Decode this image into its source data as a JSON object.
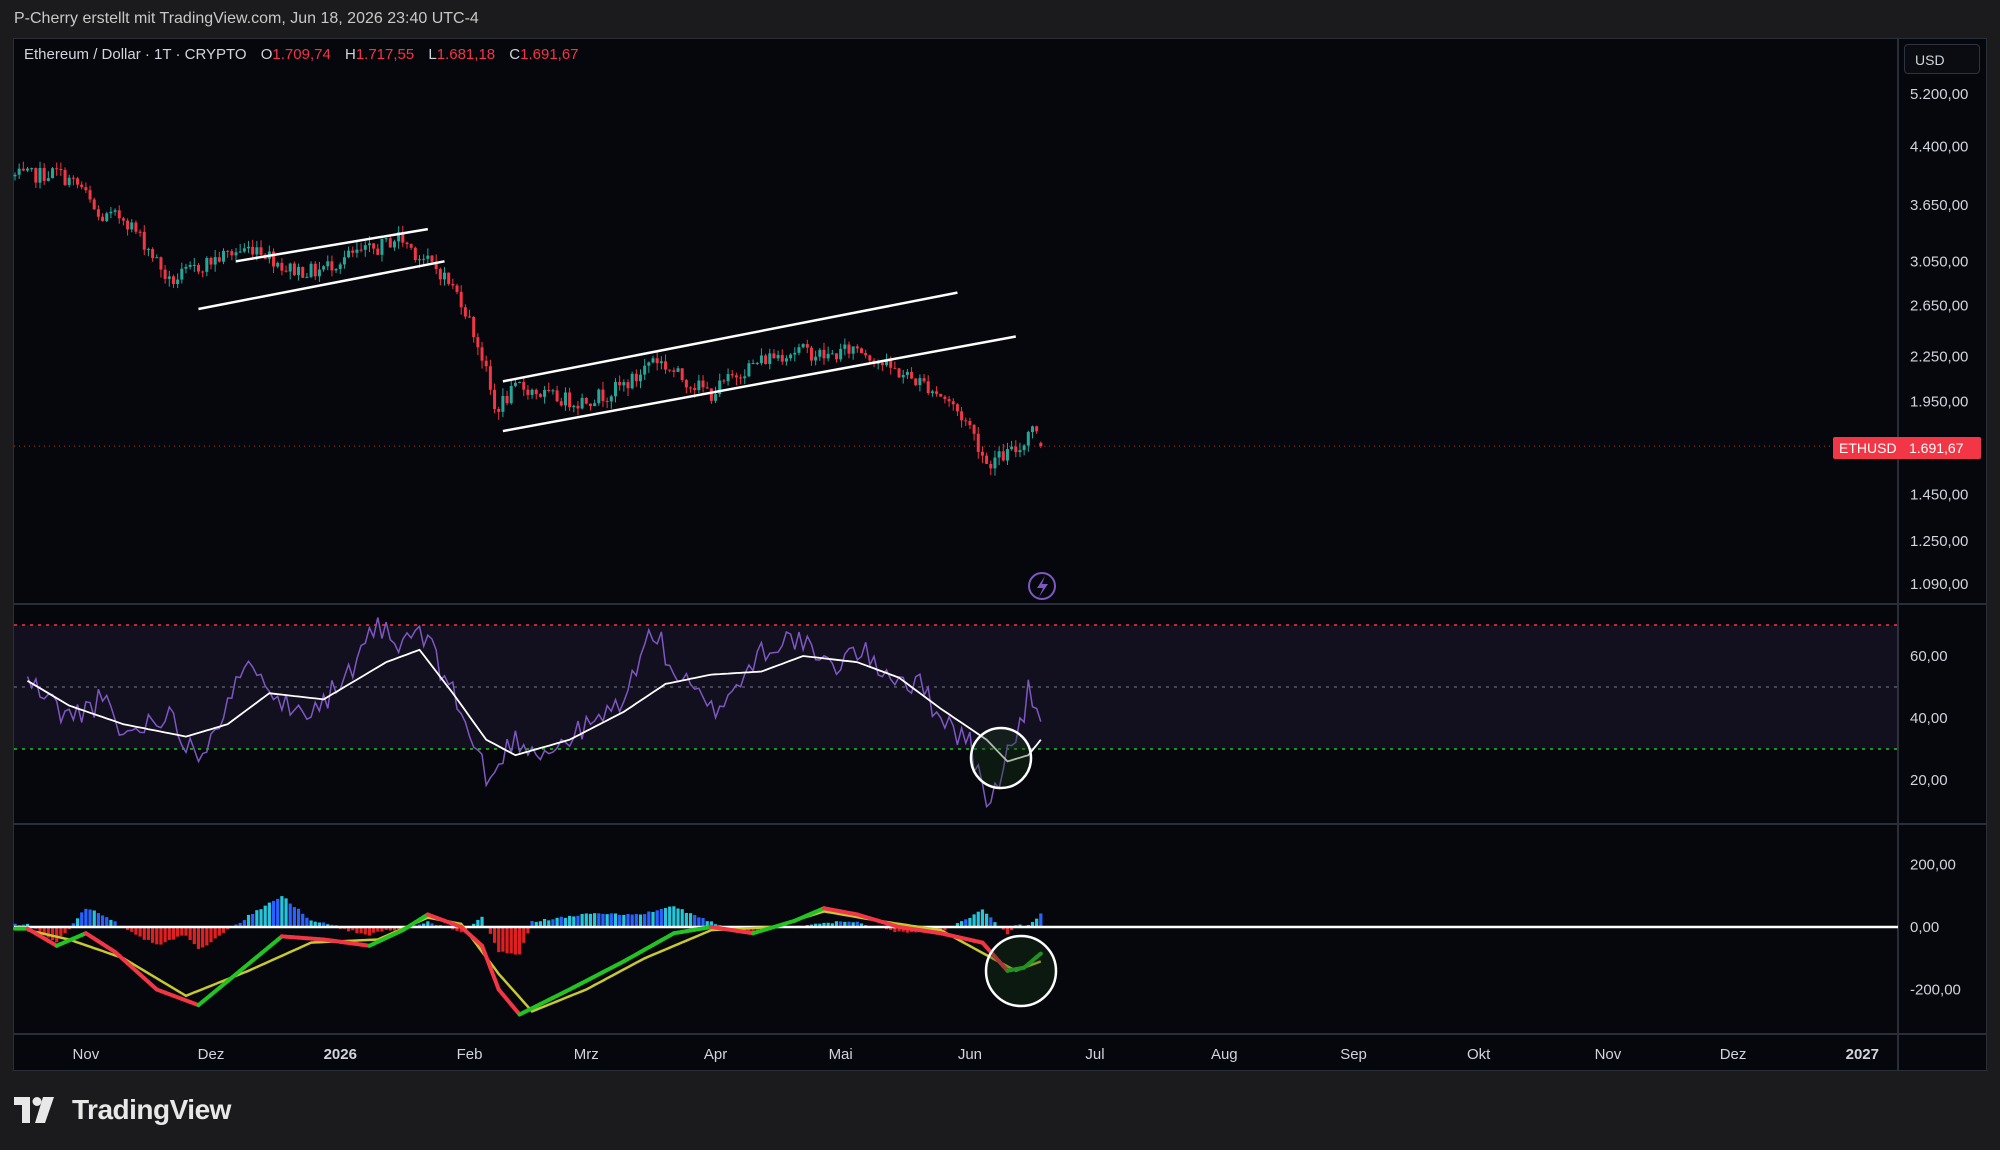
{
  "header": {
    "attribution": "P-Cherry erstellt mit TradingView.com, Jun 18, 2026 23:40 UTC-4"
  },
  "ohlc": {
    "symbol": "Ethereum / Dollar · 1T · CRYPTO",
    "open_label": "O",
    "open": "1.709,74",
    "high_label": "H",
    "high": "1.717,55",
    "low_label": "L",
    "low": "1.681,18",
    "close_label": "C",
    "close": "1.691,67"
  },
  "currency": "USD",
  "last_price": {
    "symbol": "ETHUSD",
    "value": "1.691,67"
  },
  "footer": {
    "brand": "TradingView"
  },
  "colors": {
    "background": "#06070c",
    "up": "#26a69a",
    "down": "#f23645",
    "rsi_line": "#7e57c2",
    "rsi_ma": "#ffffff",
    "macd_fast": "#f23645",
    "macd_up": "#22c322",
    "signal": "#c8c832",
    "hist_pos": "#26c6da",
    "hist_neg": "#e02020"
  },
  "chart_data": [
    {
      "type": "candlestick",
      "pane": "price",
      "scale": "log",
      "x_ticks": [
        "Nov",
        "Dez",
        "2026",
        "Feb",
        "Mrz",
        "Apr",
        "Mai",
        "Jun",
        "Jul",
        "Aug",
        "Sep",
        "Okt",
        "Nov",
        "Dez",
        "2027"
      ],
      "y_ticks": [
        "5.200,00",
        "4.400,00",
        "3.650,00",
        "3.050,00",
        "2.650,00",
        "2.250,00",
        "1.950,00",
        "1.450,00",
        "1.250,00",
        "1.090,00"
      ],
      "ylim": [
        1050,
        5500
      ],
      "path": [
        [
          "2025-10-18",
          4000
        ],
        [
          "2025-10-25",
          4050
        ],
        [
          "2025-10-31",
          3850
        ],
        [
          "2025-11-04",
          3500
        ],
        [
          "2025-11-10",
          3520
        ],
        [
          "2025-11-16",
          3180
        ],
        [
          "2025-11-21",
          2850
        ],
        [
          "2025-11-28",
          3000
        ],
        [
          "2025-12-05",
          3120
        ],
        [
          "2025-12-12",
          3200
        ],
        [
          "2025-12-19",
          2980
        ],
        [
          "2025-12-26",
          2950
        ],
        [
          "2026-01-03",
          3100
        ],
        [
          "2026-01-10",
          3180
        ],
        [
          "2026-01-15",
          3300
        ],
        [
          "2026-01-20",
          3100
        ],
        [
          "2026-01-25",
          2950
        ],
        [
          "2026-01-30",
          2700
        ],
        [
          "2026-02-04",
          2250
        ],
        [
          "2026-02-07",
          1900
        ],
        [
          "2026-02-13",
          2050
        ],
        [
          "2026-02-20",
          1980
        ],
        [
          "2026-02-27",
          1950
        ],
        [
          "2026-03-06",
          2000
        ],
        [
          "2026-03-13",
          2100
        ],
        [
          "2026-03-17",
          2250
        ],
        [
          "2026-03-24",
          2100
        ],
        [
          "2026-03-31",
          2000
        ],
        [
          "2026-04-07",
          2150
        ],
        [
          "2026-04-14",
          2250
        ],
        [
          "2026-04-21",
          2300
        ],
        [
          "2026-04-28",
          2250
        ],
        [
          "2026-05-05",
          2320
        ],
        [
          "2026-05-12",
          2180
        ],
        [
          "2026-05-18",
          2100
        ],
        [
          "2026-05-22",
          2050
        ],
        [
          "2026-05-27",
          1950
        ],
        [
          "2026-06-01",
          1800
        ],
        [
          "2026-06-05",
          1600
        ],
        [
          "2026-06-09",
          1640
        ],
        [
          "2026-06-13",
          1680
        ],
        [
          "2026-06-16",
          1820
        ],
        [
          "2026-06-18",
          1692
        ]
      ],
      "lines": [
        {
          "name": "channel-1-lower",
          "from": [
            "2025-11-28",
            2620
          ],
          "to": [
            "2026-01-26",
            3050
          ]
        },
        {
          "name": "channel-1-upper",
          "from": [
            "2025-12-07",
            3050
          ],
          "to": [
            "2026-01-22",
            3380
          ]
        },
        {
          "name": "channel-2-lower",
          "from": [
            "2026-02-09",
            1775
          ],
          "to": [
            "2026-06-12",
            2400
          ]
        },
        {
          "name": "channel-2-upper",
          "from": [
            "2026-02-09",
            2080
          ],
          "to": [
            "2026-05-29",
            2760
          ]
        }
      ],
      "last_value": 1691.67
    },
    {
      "type": "line",
      "pane": "rsi",
      "y_ticks": [
        "60,00",
        "40,00",
        "20,00"
      ],
      "ylim": [
        7,
        77
      ],
      "levels": [
        {
          "value": 70,
          "color": "#f23645"
        },
        {
          "value": 50,
          "color": "#555a66"
        },
        {
          "value": 30,
          "color": "#22c322"
        }
      ],
      "series": [
        {
          "values": [
            [
              "2025-10-18",
              52
            ],
            [
              "2025-10-28",
              40
            ],
            [
              "2025-11-05",
              46
            ],
            [
              "2025-11-10",
              34
            ],
            [
              "2025-11-20",
              42
            ],
            [
              "2025-11-28",
              28
            ],
            [
              "2025-12-06",
              48
            ],
            [
              "2025-12-12",
              58
            ],
            [
              "2025-12-20",
              42
            ],
            [
              "2025-12-28",
              46
            ],
            [
              "2026-01-05",
              56
            ],
            [
              "2026-01-10",
              71
            ],
            [
              "2026-01-14",
              62
            ],
            [
              "2026-01-20",
              68
            ],
            [
              "2026-01-27",
              52
            ],
            [
              "2026-02-02",
              31
            ],
            [
              "2026-02-06",
              19
            ],
            [
              "2026-02-11",
              33
            ],
            [
              "2026-02-20",
              29
            ],
            [
              "2026-02-28",
              36
            ],
            [
              "2026-03-07",
              42
            ],
            [
              "2026-03-12",
              52
            ],
            [
              "2026-03-17",
              69
            ],
            [
              "2026-03-22",
              55
            ],
            [
              "2026-03-31",
              42
            ],
            [
              "2026-04-07",
              52
            ],
            [
              "2026-04-12",
              62
            ],
            [
              "2026-04-20",
              66
            ],
            [
              "2026-04-28",
              56
            ],
            [
              "2026-05-05",
              62
            ],
            [
              "2026-05-12",
              55
            ],
            [
              "2026-05-20",
              50
            ],
            [
              "2026-05-27",
              38
            ],
            [
              "2026-06-01",
              32
            ],
            [
              "2026-06-04",
              16
            ],
            [
              "2026-06-06",
              12
            ],
            [
              "2026-06-09",
              26
            ],
            [
              "2026-06-13",
              36
            ],
            [
              "2026-06-15",
              48
            ],
            [
              "2026-06-18",
              42
            ]
          ]
        },
        {
          "values": [
            [
              "2025-10-18",
              52
            ],
            [
              "2025-10-28",
              44
            ],
            [
              "2025-11-10",
              38
            ],
            [
              "2025-11-25",
              34
            ],
            [
              "2025-12-05",
              38
            ],
            [
              "2025-12-15",
              48
            ],
            [
              "2025-12-28",
              46
            ],
            [
              "2026-01-12",
              58
            ],
            [
              "2026-01-20",
              62
            ],
            [
              "2026-01-28",
              48
            ],
            [
              "2026-02-05",
              33
            ],
            [
              "2026-02-12",
              28
            ],
            [
              "2026-02-25",
              33
            ],
            [
              "2026-03-10",
              42
            ],
            [
              "2026-03-20",
              51
            ],
            [
              "2026-03-31",
              54
            ],
            [
              "2026-04-12",
              55
            ],
            [
              "2026-04-22",
              60
            ],
            [
              "2026-05-05",
              58
            ],
            [
              "2026-05-15",
              53
            ],
            [
              "2026-05-25",
              43
            ],
            [
              "2026-06-05",
              33
            ],
            [
              "2026-06-10",
              26
            ],
            [
              "2026-06-15",
              28
            ],
            [
              "2026-06-18",
              33
            ]
          ]
        }
      ]
    },
    {
      "type": "line",
      "pane": "macd",
      "y_ticks": [
        "200,00",
        "0,00",
        "-200,00"
      ],
      "ylim": [
        -335,
        330
      ],
      "series": [
        {
          "values": [
            [
              "2025-10-18",
              -5
            ],
            [
              "2025-10-25",
              -60
            ],
            [
              "2025-11-01",
              -20
            ],
            [
              "2025-11-08",
              -80
            ],
            [
              "2025-11-18",
              -200
            ],
            [
              "2025-11-28",
              -250
            ],
            [
              "2025-12-08",
              -140
            ],
            [
              "2025-12-18",
              -30
            ],
            [
              "2025-12-28",
              -40
            ],
            [
              "2026-01-08",
              -60
            ],
            [
              "2026-01-16",
              -10
            ],
            [
              "2026-01-22",
              40
            ],
            [
              "2026-01-30",
              0
            ],
            [
              "2026-02-04",
              -60
            ],
            [
              "2026-02-08",
              -200
            ],
            [
              "2026-02-13",
              -280
            ],
            [
              "2026-02-25",
              -200
            ],
            [
              "2026-03-10",
              -110
            ],
            [
              "2026-03-22",
              -20
            ],
            [
              "2026-03-31",
              0
            ],
            [
              "2026-04-10",
              -20
            ],
            [
              "2026-04-20",
              20
            ],
            [
              "2026-04-27",
              60
            ],
            [
              "2026-05-05",
              40
            ],
            [
              "2026-05-15",
              0
            ],
            [
              "2026-05-25",
              -20
            ],
            [
              "2026-06-04",
              -50
            ],
            [
              "2026-06-10",
              -140
            ],
            [
              "2026-06-14",
              -130
            ],
            [
              "2026-06-18",
              -85
            ]
          ]
        },
        {
          "values": [
            [
              "2025-10-18",
              -10
            ],
            [
              "2025-10-28",
              -40
            ],
            [
              "2025-11-10",
              -100
            ],
            [
              "2025-11-25",
              -220
            ],
            [
              "2025-12-10",
              -140
            ],
            [
              "2025-12-25",
              -50
            ],
            [
              "2026-01-10",
              -40
            ],
            [
              "2026-01-22",
              30
            ],
            [
              "2026-01-30",
              10
            ],
            [
              "2026-02-08",
              -150
            ],
            [
              "2026-02-16",
              -270
            ],
            [
              "2026-03-01",
              -200
            ],
            [
              "2026-03-15",
              -100
            ],
            [
              "2026-03-31",
              -10
            ],
            [
              "2026-04-15",
              0
            ],
            [
              "2026-04-27",
              50
            ],
            [
              "2026-05-10",
              20
            ],
            [
              "2026-05-25",
              -10
            ],
            [
              "2026-06-05",
              -90
            ],
            [
              "2026-06-12",
              -140
            ],
            [
              "2026-06-18",
              -110
            ]
          ]
        }
      ],
      "histogram_sign": [
        [
          "2025-10-18",
          -1
        ],
        [
          "2025-10-27",
          1
        ],
        [
          "2025-11-02",
          -1
        ],
        [
          "2025-12-01",
          1
        ],
        [
          "2025-12-22",
          -1
        ],
        [
          "2026-01-08",
          1
        ],
        [
          "2026-01-26",
          -1
        ],
        [
          "2026-02-14",
          1
        ],
        [
          "2026-04-01",
          -1
        ],
        [
          "2026-04-10",
          1
        ],
        [
          "2026-04-30",
          -1
        ],
        [
          "2026-06-12",
          1
        ]
      ]
    }
  ]
}
